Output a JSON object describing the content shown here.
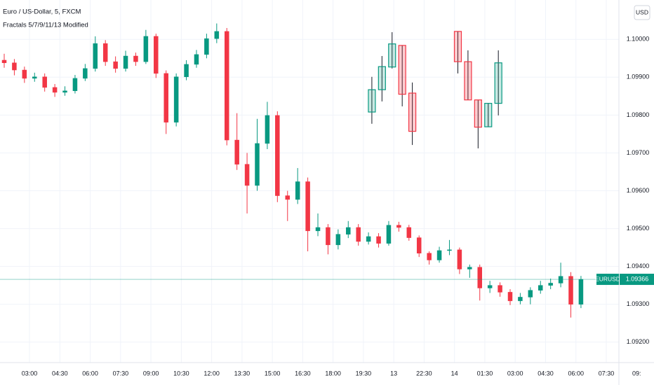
{
  "chart_data": {
    "type": "candlestick",
    "title": "Euro / US-Dollar, 5, FXCM",
    "subtitle": "Fractals 5/7/9/11/13 Modified",
    "currency": "USD",
    "symbol": "EURUSD",
    "last_price": {
      "value": 1.09366,
      "label": "1.09366"
    },
    "up_color": "#089981",
    "down_color": "#f23645",
    "grid": true,
    "xlim": [
      -17.5,
      349.5
    ],
    "ylim": [
      1.09146,
      1.10104
    ],
    "yticks": [
      {
        "value": 1.092,
        "label": "1.09200"
      },
      {
        "value": 1.093,
        "label": "1.09300"
      },
      {
        "value": 1.094,
        "label": "1.09400"
      },
      {
        "value": 1.095,
        "label": "1.09500"
      },
      {
        "value": 1.096,
        "label": "1.09600"
      },
      {
        "value": 1.097,
        "label": "1.09700"
      },
      {
        "value": 1.098,
        "label": "1.09800"
      },
      {
        "value": 1.099,
        "label": "1.09900"
      },
      {
        "value": 1.1,
        "label": "1.10000"
      }
    ],
    "xticks": [
      {
        "value": 0,
        "label": "03:00"
      },
      {
        "value": 18,
        "label": "04:30"
      },
      {
        "value": 36,
        "label": "06:00"
      },
      {
        "value": 54,
        "label": "07:30"
      },
      {
        "value": 72,
        "label": "09:00"
      },
      {
        "value": 90,
        "label": "10:30"
      },
      {
        "value": 108,
        "label": "12:00"
      },
      {
        "value": 126,
        "label": "13:30"
      },
      {
        "value": 144,
        "label": "15:00"
      },
      {
        "value": 162,
        "label": "16:30"
      },
      {
        "value": 180,
        "label": "18:00"
      },
      {
        "value": 198,
        "label": "19:30"
      },
      {
        "value": 216,
        "label": "13"
      },
      {
        "value": 234,
        "label": "22:30"
      },
      {
        "value": 252,
        "label": "14"
      },
      {
        "value": 270,
        "label": "01:30"
      },
      {
        "value": 288,
        "label": "03:00"
      },
      {
        "value": 306,
        "label": "04:30"
      },
      {
        "value": 324,
        "label": "06:00"
      },
      {
        "value": 342,
        "label": "07:30"
      },
      {
        "value": 360,
        "label": "09:"
      }
    ],
    "series": [
      {
        "name": "EURUSD",
        "x": [
          -15,
          -9,
          -3,
          3,
          9,
          15,
          21,
          27,
          33,
          39,
          45,
          51,
          57,
          63,
          69,
          75,
          81,
          87,
          93,
          99,
          105,
          111,
          117,
          123,
          129,
          135,
          141,
          147,
          153,
          159,
          165,
          171,
          177,
          183,
          189,
          195,
          201,
          207,
          213,
          219,
          225,
          231,
          237,
          243,
          249,
          255,
          261,
          267,
          273,
          279,
          285,
          291,
          297,
          303,
          309,
          315,
          321,
          327
        ],
        "open": [
          1.09945,
          1.09938,
          1.09919,
          1.09897,
          1.09901,
          1.09873,
          1.0986,
          1.09864,
          1.09897,
          1.09923,
          1.09989,
          1.09941,
          1.09923,
          1.09956,
          1.09941,
          1.10008,
          1.0991,
          1.09781,
          1.09901,
          1.09934,
          1.0996,
          1.10002,
          1.10021,
          1.09734,
          1.0967,
          1.09614,
          1.09725,
          1.09799,
          1.09587,
          1.09577,
          1.09624,
          1.09494,
          1.09503,
          1.09457,
          1.09485,
          1.09503,
          1.09466,
          1.09479,
          1.09461,
          1.09509,
          1.09503,
          1.09476,
          1.09435,
          1.09417,
          1.09442,
          1.09444,
          1.09393,
          1.09398,
          1.09343,
          1.0935,
          1.09332,
          1.09309,
          1.09319,
          1.09337,
          1.0935,
          1.09356,
          1.09374,
          1.093
        ],
        "high": [
          1.09962,
          1.09948,
          1.09928,
          1.09912,
          1.0991,
          1.09882,
          1.09876,
          1.09906,
          1.09935,
          1.10008,
          1.09998,
          1.09955,
          1.0997,
          1.09965,
          1.10025,
          1.10015,
          1.09918,
          1.0991,
          1.09945,
          1.09972,
          1.10015,
          1.10042,
          1.1003,
          1.09805,
          1.097,
          1.0979,
          1.09835,
          1.0981,
          1.096,
          1.0966,
          1.09635,
          1.0954,
          1.09512,
          1.09498,
          1.0952,
          1.09512,
          1.0949,
          1.09488,
          1.0952,
          1.09518,
          1.0951,
          1.09482,
          1.0944,
          1.09452,
          1.0947,
          1.0945,
          1.09405,
          1.09405,
          1.09362,
          1.09358,
          1.0934,
          1.0933,
          1.09345,
          1.09362,
          1.09368,
          1.0941,
          1.09385,
          1.09375
        ],
        "low": [
          1.09925,
          1.09905,
          1.09885,
          1.09888,
          1.09862,
          1.09848,
          1.09851,
          1.09857,
          1.0989,
          1.09915,
          1.0993,
          1.09912,
          1.09915,
          1.0993,
          1.09935,
          1.09898,
          1.0975,
          1.0977,
          1.09892,
          1.09925,
          1.0995,
          1.0999,
          1.0972,
          1.09655,
          1.0954,
          1.096,
          1.0971,
          1.0957,
          1.0952,
          1.09565,
          1.0944,
          1.0948,
          1.09432,
          1.09445,
          1.09475,
          1.09455,
          1.09458,
          1.0945,
          1.09455,
          1.09492,
          1.09468,
          1.09425,
          1.09405,
          1.0941,
          1.0943,
          1.0938,
          1.0937,
          1.0931,
          1.0933,
          1.0932,
          1.09298,
          1.093,
          1.093,
          1.09328,
          1.0934,
          1.09345,
          1.09265,
          1.0929
        ],
        "close": [
          1.09938,
          1.09919,
          1.09897,
          1.09901,
          1.09873,
          1.0986,
          1.09864,
          1.09897,
          1.09923,
          1.09989,
          1.09941,
          1.09923,
          1.09956,
          1.09941,
          1.10008,
          1.0991,
          1.09781,
          1.09901,
          1.09934,
          1.0996,
          1.10002,
          1.10021,
          1.09734,
          1.0967,
          1.09614,
          1.09725,
          1.09799,
          1.09587,
          1.09577,
          1.09624,
          1.09494,
          1.09503,
          1.09457,
          1.09485,
          1.09503,
          1.09466,
          1.09479,
          1.09461,
          1.09509,
          1.09503,
          1.09476,
          1.09435,
          1.09417,
          1.09442,
          1.09444,
          1.09393,
          1.09398,
          1.09343,
          1.0935,
          1.09332,
          1.09309,
          1.09319,
          1.09337,
          1.0935,
          1.09356,
          1.09374,
          1.093,
          1.09366
        ]
      },
      {
        "x": [
          203,
          209,
          215,
          221,
          227,
          254,
          260,
          266,
          272,
          278
        ],
        "open": [
          1.09808,
          1.09867,
          1.09927,
          1.09984,
          1.09858,
          1.10021,
          1.09941,
          1.0984,
          1.09769,
          1.09831
        ],
        "high": [
          1.09901,
          1.09956,
          1.10019,
          1.09984,
          1.09886,
          1.10021,
          1.09971,
          1.0984,
          1.09831,
          1.09971
        ],
        "low": [
          1.09777,
          1.09836,
          1.09923,
          1.09823,
          1.09721,
          1.0991,
          1.0984,
          1.09712,
          1.09769,
          1.09799
        ],
        "close": [
          1.09867,
          1.09928,
          1.09988,
          1.09855,
          1.09757,
          1.09941,
          1.0984,
          1.09768,
          1.09831,
          1.09938
        ]
      }
    ]
  }
}
